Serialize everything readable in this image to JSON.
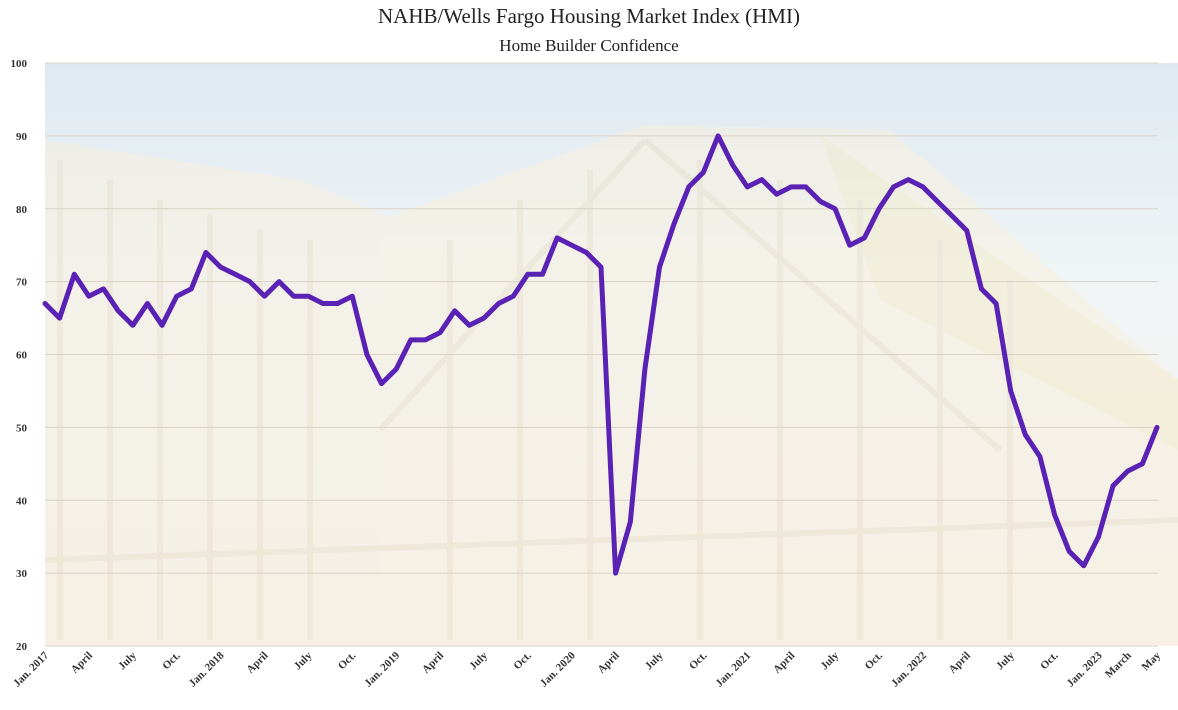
{
  "chart_data": {
    "type": "line",
    "title": "NAHB/Wells Fargo Housing Market Index (HMI)",
    "subtitle": "Home Builder Confidence",
    "xlabel": "",
    "ylabel": "",
    "ylim": [
      20,
      100
    ],
    "yticks": [
      20,
      30,
      40,
      50,
      60,
      70,
      80,
      90,
      100
    ],
    "grid": true,
    "legend": "none",
    "line_color": "#5a22b4",
    "x_start": "Jan. 2017",
    "x_end": "May 2023",
    "xtick_labels": [
      {
        "index": 0,
        "label": "Jan. 2017"
      },
      {
        "index": 3,
        "label": "April"
      },
      {
        "index": 6,
        "label": "July"
      },
      {
        "index": 9,
        "label": "Oct."
      },
      {
        "index": 12,
        "label": "Jan. 2018"
      },
      {
        "index": 15,
        "label": "April"
      },
      {
        "index": 18,
        "label": "July"
      },
      {
        "index": 21,
        "label": "Oct."
      },
      {
        "index": 24,
        "label": "Jan. 2019"
      },
      {
        "index": 27,
        "label": "April"
      },
      {
        "index": 30,
        "label": "July"
      },
      {
        "index": 33,
        "label": "Oct."
      },
      {
        "index": 36,
        "label": "Jan. 2020"
      },
      {
        "index": 39,
        "label": "April"
      },
      {
        "index": 42,
        "label": "July"
      },
      {
        "index": 45,
        "label": "Oct."
      },
      {
        "index": 48,
        "label": "Jan. 2021"
      },
      {
        "index": 51,
        "label": "April"
      },
      {
        "index": 54,
        "label": "July"
      },
      {
        "index": 57,
        "label": "Oct."
      },
      {
        "index": 60,
        "label": "Jan. 2022"
      },
      {
        "index": 63,
        "label": "April"
      },
      {
        "index": 66,
        "label": "July"
      },
      {
        "index": 69,
        "label": "Oct."
      },
      {
        "index": 72,
        "label": "Jan. 2023"
      },
      {
        "index": 74,
        "label": "March"
      },
      {
        "index": 76,
        "label": "May"
      }
    ],
    "series": [
      {
        "name": "HMI",
        "values": [
          67,
          65,
          71,
          68,
          69,
          66,
          64,
          67,
          64,
          68,
          69,
          74,
          72,
          71,
          70,
          68,
          70,
          68,
          68,
          67,
          67,
          68,
          60,
          56,
          58,
          62,
          62,
          63,
          66,
          64,
          65,
          67,
          68,
          71,
          71,
          76,
          75,
          74,
          72,
          30,
          37,
          58,
          72,
          78,
          83,
          85,
          90,
          86,
          83,
          84,
          82,
          83,
          83,
          81,
          80,
          75,
          76,
          80,
          83,
          84,
          83,
          81,
          79,
          77,
          69,
          67,
          55,
          49,
          46,
          38,
          33,
          31,
          35,
          42,
          44,
          45,
          50
        ]
      }
    ]
  }
}
